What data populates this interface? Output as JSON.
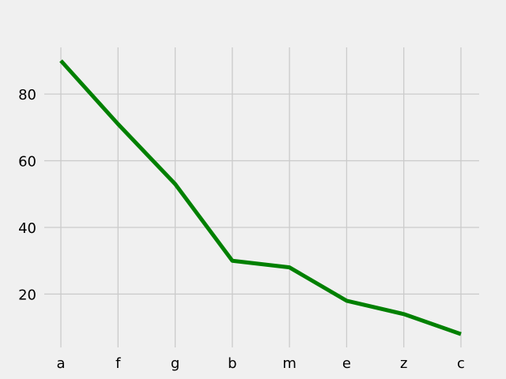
{
  "chart_data": {
    "type": "line",
    "title": "",
    "xlabel": "",
    "ylabel": "",
    "categories": [
      "a",
      "f",
      "g",
      "b",
      "m",
      "e",
      "z",
      "c"
    ],
    "series": [
      {
        "values": [
          90,
          71,
          53,
          30,
          28,
          18,
          14,
          8
        ],
        "color": "#008000"
      }
    ],
    "ylim": [
      4,
      94
    ],
    "yticks": [
      20,
      40,
      60,
      80
    ],
    "grid": true,
    "legend": "none",
    "style": {
      "background": "#f0f0f0",
      "grid_color": "#cbcbcb",
      "text_color": "#000000"
    }
  }
}
